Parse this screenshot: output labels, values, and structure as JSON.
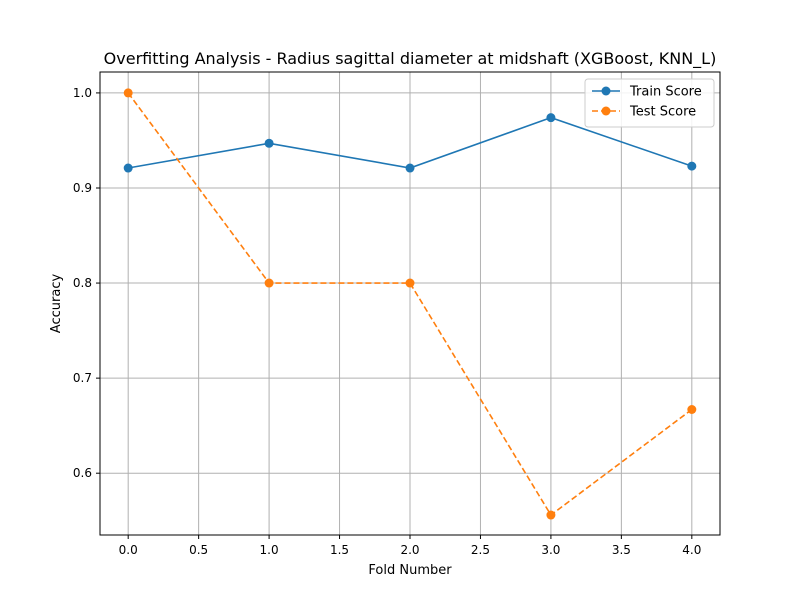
{
  "chart_data": {
    "type": "line",
    "title": "Overfitting Analysis - Radius sagittal diameter at midshaft (XGBoost, KNN_L)",
    "xlabel": "Fold Number",
    "ylabel": "Accuracy",
    "xlim": [
      -0.2,
      4.2
    ],
    "ylim": [
      0.535,
      1.022
    ],
    "x_ticks": [
      0.0,
      0.5,
      1.0,
      1.5,
      2.0,
      2.5,
      3.0,
      3.5,
      4.0
    ],
    "x_tick_labels": [
      "0.0",
      "0.5",
      "1.0",
      "1.5",
      "2.0",
      "2.5",
      "3.0",
      "3.5",
      "4.0"
    ],
    "y_ticks": [
      0.6,
      0.7,
      0.8,
      0.9,
      1.0
    ],
    "y_tick_labels": [
      "0.6",
      "0.7",
      "0.8",
      "0.9",
      "1.0"
    ],
    "grid": true,
    "legend_position": "top-right",
    "x": [
      0,
      1,
      2,
      3,
      4
    ],
    "series": [
      {
        "name": "Train Score",
        "values": [
          0.921,
          0.947,
          0.921,
          0.974,
          0.923
        ],
        "color": "#1f77b4",
        "line_style": "solid",
        "marker": "circle"
      },
      {
        "name": "Test Score",
        "values": [
          1.0,
          0.8,
          0.8,
          0.556,
          0.667
        ],
        "color": "#ff7f0e",
        "line_style": "dashed",
        "marker": "circle"
      }
    ]
  }
}
